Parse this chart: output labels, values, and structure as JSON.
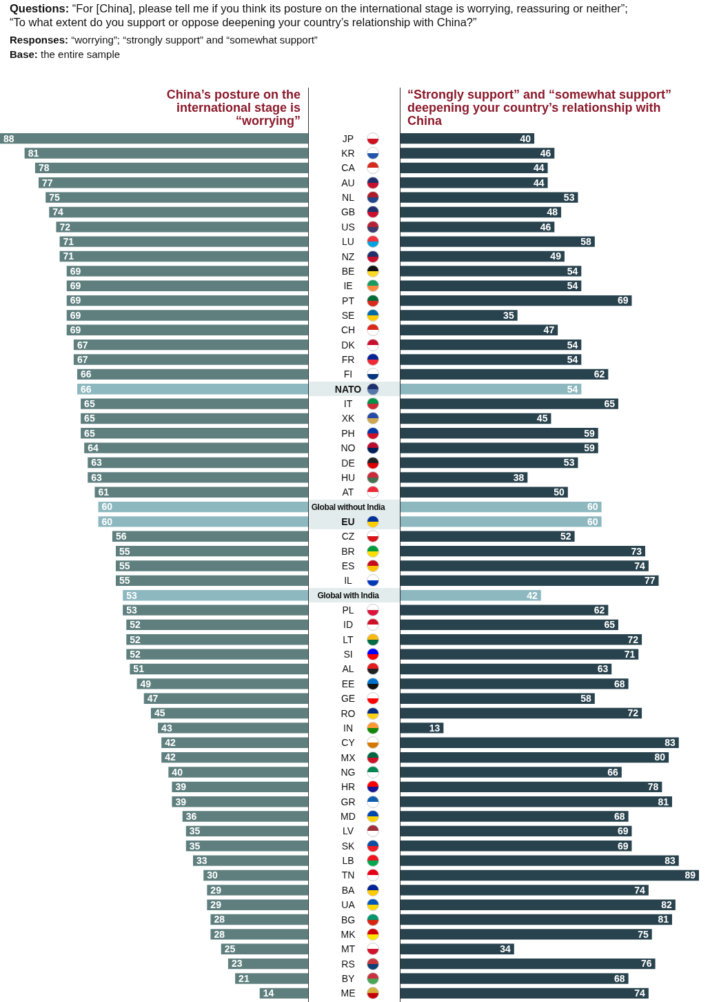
{
  "chart_data": [
    {
      "type": "bar",
      "orientation": "horizontal",
      "title": "China’s posture on the international stage is “worrying”",
      "annotations": [
        "Questions: “For [China], please tell me if you think its posture on the international stage is worrying, reassuring or neither”; “To what extent do you support or oppose deepening your country’s relationship with China?”",
        "Responses: “worrying”; “strongly support” and “somewhat support”",
        "Base: the entire sample"
      ],
      "data_labels": true,
      "tick_labels": "y",
      "categories": [
        "JP",
        "KR",
        "CA",
        "AU",
        "NL",
        "GB",
        "US",
        "LU",
        "NZ",
        "BE",
        "IE",
        "PT",
        "SE",
        "CH",
        "DK",
        "FR",
        "FI",
        "NATO",
        "IT",
        "XK",
        "PH",
        "NO",
        "DE",
        "HU",
        "AT",
        "Global without India",
        "EU",
        "CZ",
        "BR",
        "ES",
        "IL",
        "Global with India",
        "PL",
        "ID",
        "LT",
        "SI",
        "AL",
        "EE",
        "GE",
        "RO",
        "IN",
        "CY",
        "MX",
        "NG",
        "HR",
        "GR",
        "MD",
        "LV",
        "SK",
        "LB",
        "TN",
        "BA",
        "UA",
        "BG",
        "MK",
        "MT",
        "RS",
        "BY",
        "ME"
      ],
      "values": [
        88,
        81,
        78,
        77,
        75,
        74,
        72,
        71,
        71,
        69,
        69,
        69,
        69,
        69,
        67,
        67,
        66,
        66,
        65,
        65,
        65,
        64,
        63,
        63,
        61,
        60,
        60,
        56,
        55,
        55,
        55,
        53,
        53,
        52,
        52,
        52,
        51,
        49,
        47,
        45,
        43,
        42,
        42,
        40,
        39,
        39,
        36,
        35,
        35,
        33,
        30,
        29,
        29,
        28,
        28,
        25,
        23,
        21,
        14
      ],
      "colors": [
        "#5f7f7f",
        "#5f7f7f",
        "#5f7f7f",
        "#5f7f7f",
        "#5f7f7f",
        "#5f7f7f",
        "#5f7f7f",
        "#5f7f7f",
        "#5f7f7f",
        "#5f7f7f",
        "#5f7f7f",
        "#5f7f7f",
        "#5f7f7f",
        "#5f7f7f",
        "#5f7f7f",
        "#5f7f7f",
        "#5f7f7f",
        "#8db8bf",
        "#5f7f7f",
        "#5f7f7f",
        "#5f7f7f",
        "#5f7f7f",
        "#5f7f7f",
        "#5f7f7f",
        "#5f7f7f",
        "#8db8bf",
        "#8db8bf",
        "#5f7f7f",
        "#5f7f7f",
        "#5f7f7f",
        "#5f7f7f",
        "#8db8bf",
        "#5f7f7f",
        "#5f7f7f",
        "#5f7f7f",
        "#5f7f7f",
        "#5f7f7f",
        "#5f7f7f",
        "#5f7f7f",
        "#5f7f7f",
        "#5f7f7f",
        "#5f7f7f",
        "#5f7f7f",
        "#5f7f7f",
        "#5f7f7f",
        "#5f7f7f",
        "#5f7f7f",
        "#5f7f7f",
        "#5f7f7f",
        "#5f7f7f",
        "#5f7f7f",
        "#5f7f7f",
        "#5f7f7f",
        "#5f7f7f",
        "#5f7f7f",
        "#5f7f7f",
        "#5f7f7f",
        "#5f7f7f",
        "#5f7f7f"
      ]
    },
    {
      "type": "bar",
      "orientation": "horizontal",
      "title": "“Strongly support” and “somewhat support” deepening your country’s relationship with China",
      "data_labels": true,
      "categories": [
        null,
        null,
        null,
        null,
        null,
        null,
        null,
        null,
        null,
        null,
        null,
        null,
        null,
        null,
        null,
        null,
        null,
        null,
        null,
        null,
        null,
        null,
        null,
        null,
        null,
        null,
        null,
        null,
        null,
        null,
        null,
        null,
        null,
        null,
        null,
        null,
        null,
        null,
        null,
        null,
        null,
        null,
        null,
        null,
        null,
        null,
        null,
        null,
        null,
        null,
        null,
        null,
        null,
        null,
        null,
        null,
        null,
        null,
        null
      ],
      "values": [
        40,
        46,
        44,
        44,
        53,
        48,
        46,
        58,
        49,
        54,
        54,
        69,
        35,
        47,
        54,
        54,
        62,
        54,
        65,
        45,
        59,
        59,
        53,
        38,
        50,
        60,
        60,
        52,
        73,
        74,
        77,
        42,
        62,
        65,
        72,
        71,
        63,
        68,
        58,
        72,
        13,
        83,
        80,
        66,
        78,
        81,
        68,
        69,
        69,
        83,
        89,
        74,
        82,
        81,
        75,
        34,
        76,
        68,
        74
      ],
      "colors": [
        "#29434e",
        "#29434e",
        "#29434e",
        "#29434e",
        "#29434e",
        "#29434e",
        "#29434e",
        "#29434e",
        "#29434e",
        "#29434e",
        "#29434e",
        "#29434e",
        "#29434e",
        "#29434e",
        "#29434e",
        "#29434e",
        "#29434e",
        "#8db8bf",
        "#29434e",
        "#29434e",
        "#29434e",
        "#29434e",
        "#29434e",
        "#29434e",
        "#29434e",
        "#8db8bf",
        "#8db8bf",
        "#29434e",
        "#29434e",
        "#29434e",
        "#29434e",
        "#8db8bf",
        "#29434e",
        "#29434e",
        "#29434e",
        "#29434e",
        "#29434e",
        "#29434e",
        "#29434e",
        "#29434e",
        "#29434e",
        "#29434e",
        "#29434e",
        "#29434e",
        "#29434e",
        "#29434e",
        "#29434e",
        "#29434e",
        "#29434e",
        "#29434e",
        "#29434e",
        "#29434e",
        "#29434e",
        "#29434e",
        "#29434e",
        "#29434e",
        "#29434e",
        "#29434e",
        "#29434e"
      ]
    }
  ]
}
